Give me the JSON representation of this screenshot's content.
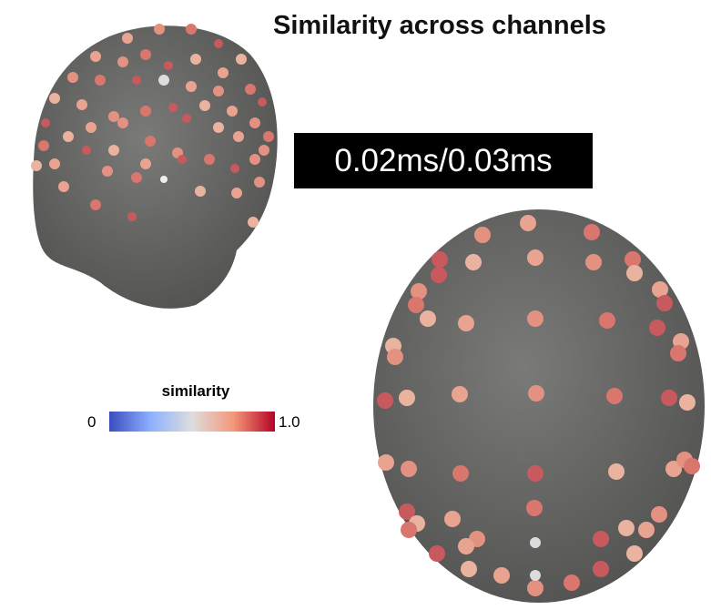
{
  "title": "Similarity across channels",
  "time_label": "0.02ms/0.03ms",
  "colorbar": {
    "title": "similarity",
    "min_label": "0",
    "max_label": "1.0"
  }
}
